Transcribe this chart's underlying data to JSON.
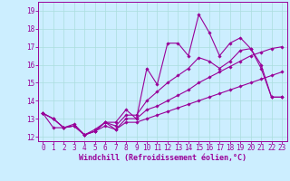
{
  "xlabel": "Windchill (Refroidissement éolien,°C)",
  "bg_color": "#cceeff",
  "line_color": "#990099",
  "grid_color": "#aadddd",
  "xlim": [
    -0.5,
    23.5
  ],
  "ylim": [
    11.75,
    19.5
  ],
  "xticks": [
    0,
    1,
    2,
    3,
    4,
    5,
    6,
    7,
    8,
    9,
    10,
    11,
    12,
    13,
    14,
    15,
    16,
    17,
    18,
    19,
    20,
    21,
    22,
    23
  ],
  "yticks": [
    12,
    13,
    14,
    15,
    16,
    17,
    18,
    19
  ],
  "series1_y": [
    13.3,
    13.0,
    12.5,
    12.7,
    12.1,
    12.4,
    12.8,
    12.8,
    13.5,
    13.0,
    15.8,
    14.9,
    17.2,
    17.2,
    16.5,
    18.8,
    17.8,
    16.5,
    17.2,
    17.5,
    16.9,
    15.8,
    14.2,
    14.2
  ],
  "series2_y": [
    13.3,
    13.0,
    12.5,
    12.6,
    12.1,
    12.3,
    12.8,
    12.6,
    13.2,
    13.2,
    14.0,
    14.5,
    15.0,
    15.4,
    15.8,
    16.4,
    16.2,
    15.8,
    16.2,
    16.8,
    16.9,
    16.0,
    14.2,
    14.2
  ],
  "series3_y": [
    13.3,
    13.0,
    12.5,
    12.6,
    12.1,
    12.3,
    12.8,
    12.4,
    13.0,
    13.0,
    13.5,
    13.7,
    14.0,
    14.3,
    14.6,
    15.0,
    15.3,
    15.6,
    15.9,
    16.2,
    16.5,
    16.7,
    16.9,
    17.0
  ],
  "series4_y": [
    13.3,
    12.5,
    12.5,
    12.6,
    12.1,
    12.3,
    12.6,
    12.4,
    12.8,
    12.8,
    13.0,
    13.2,
    13.4,
    13.6,
    13.8,
    14.0,
    14.2,
    14.4,
    14.6,
    14.8,
    15.0,
    15.2,
    15.4,
    15.6
  ],
  "tick_fontsize": 5.5,
  "xlabel_fontsize": 6.0,
  "lw": 0.8,
  "ms": 1.8
}
